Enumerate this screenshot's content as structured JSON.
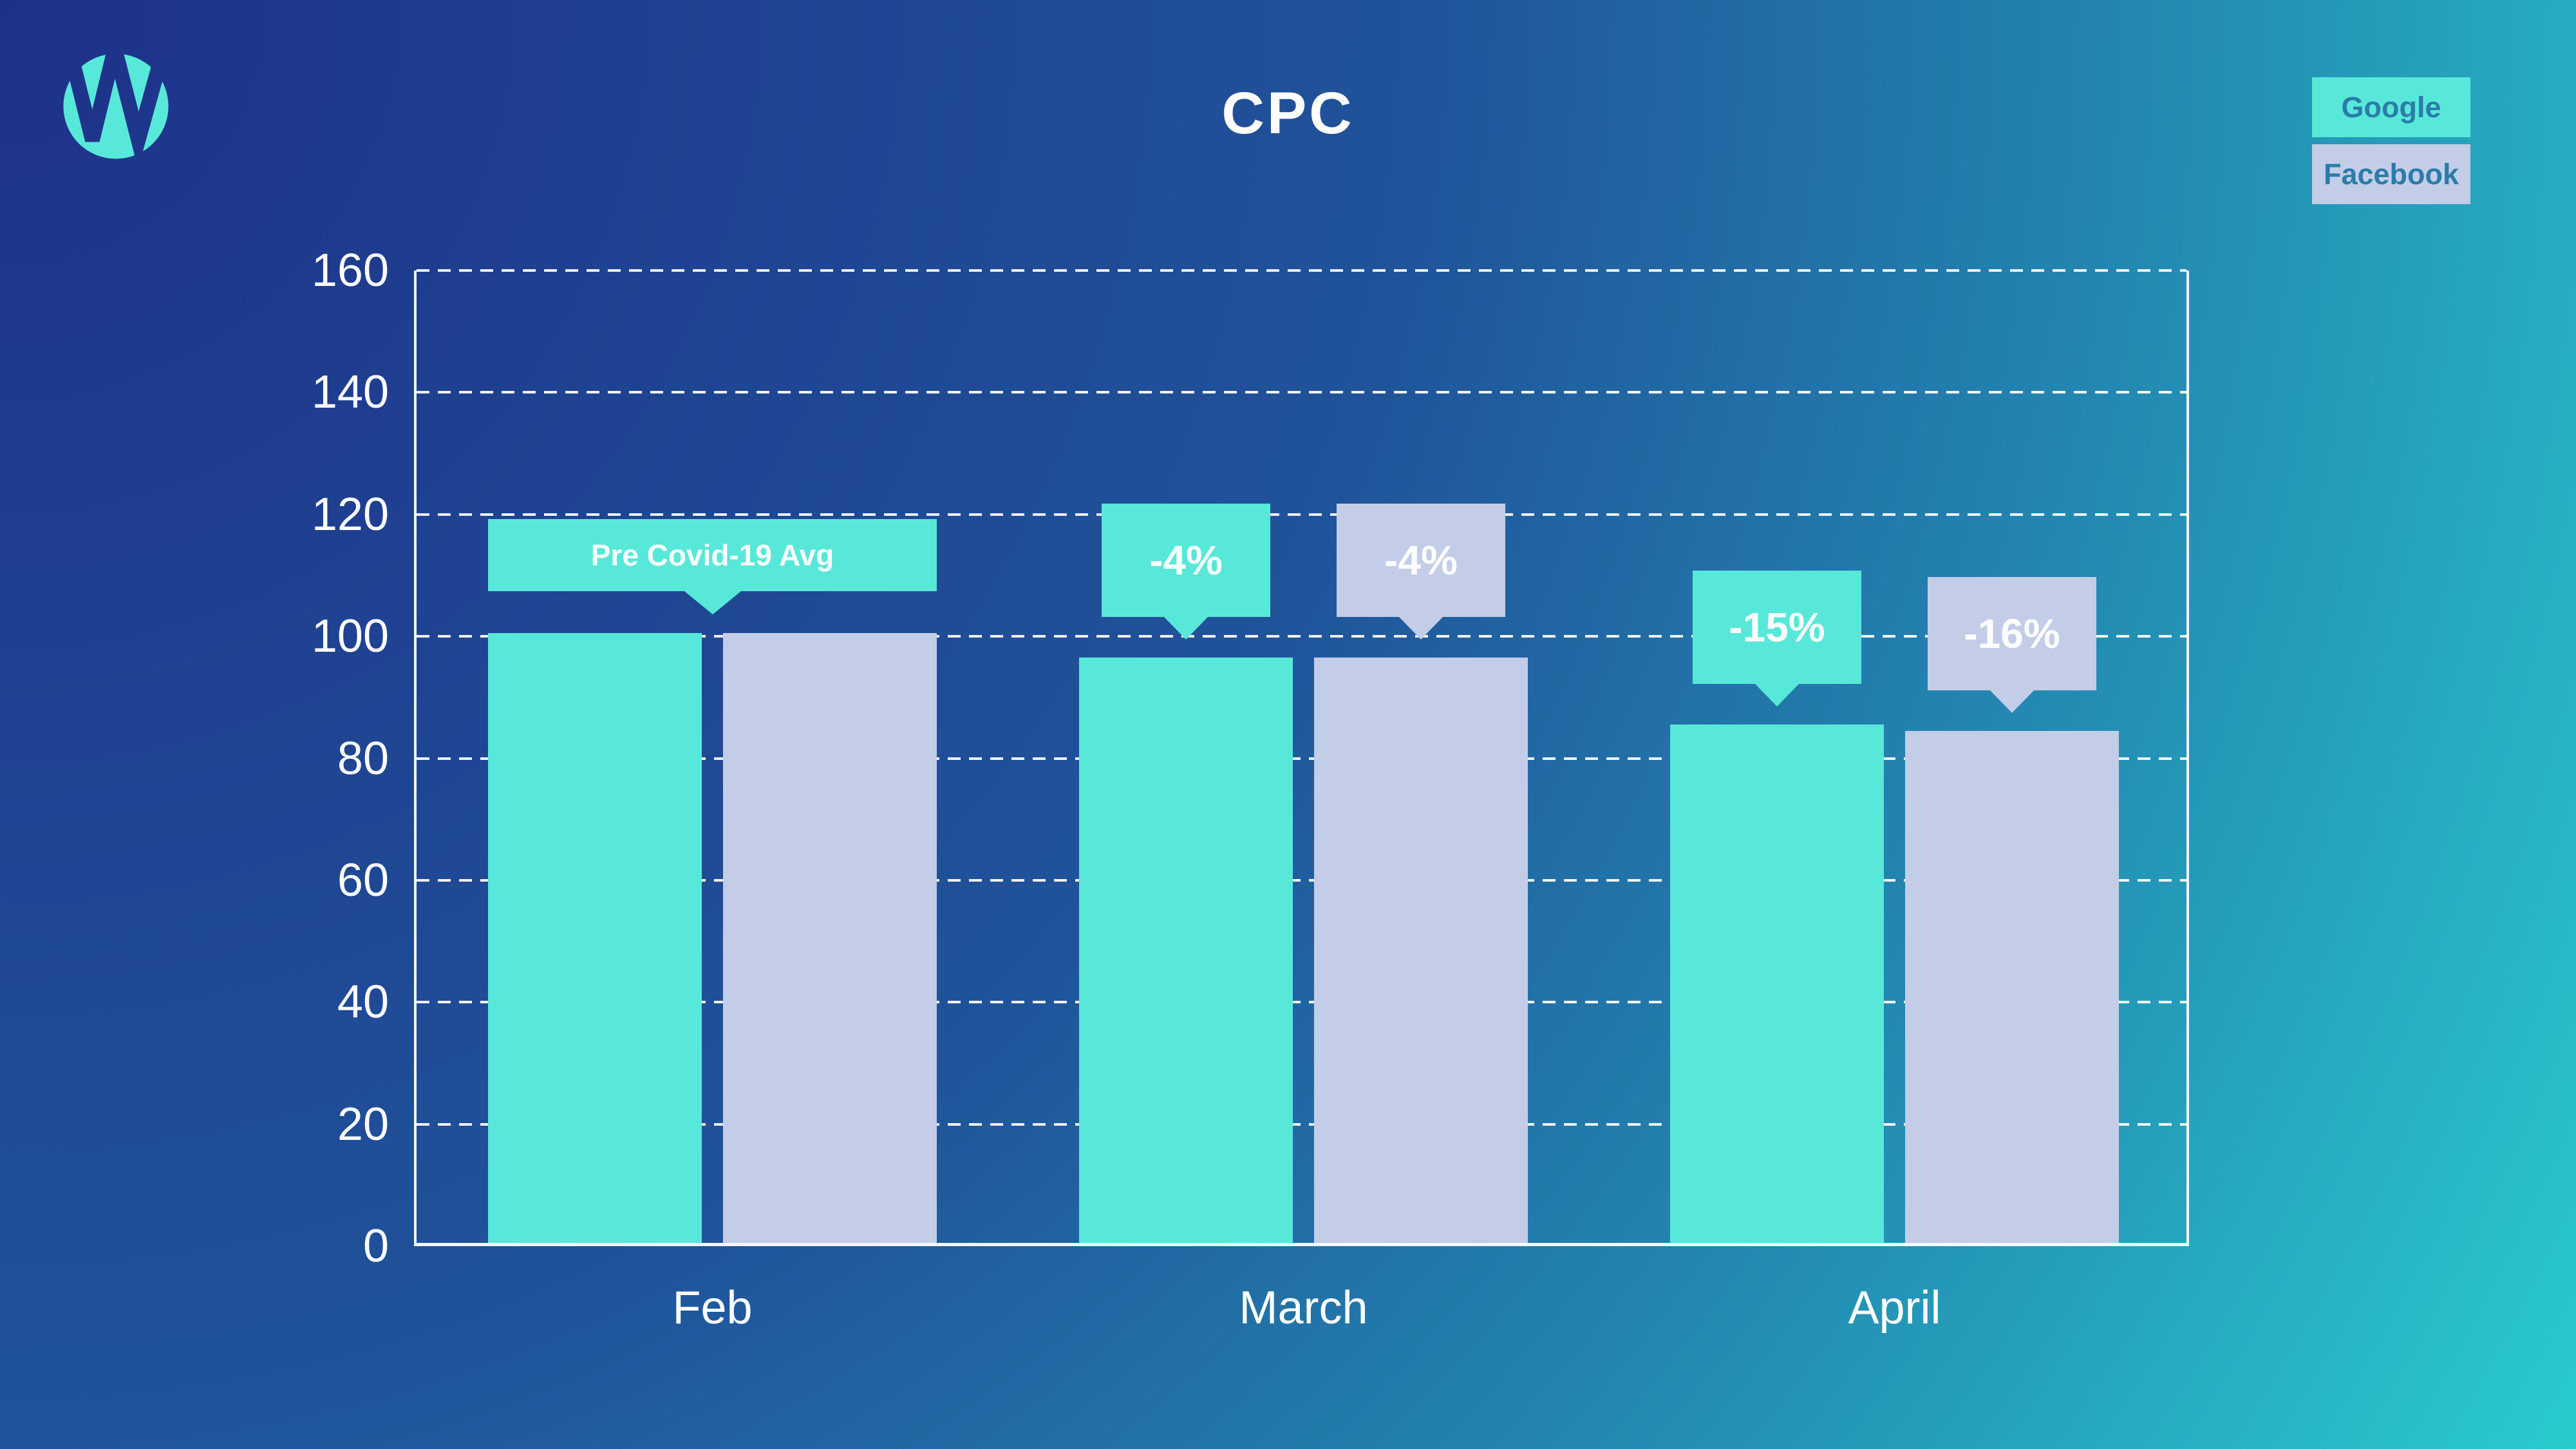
{
  "page": {
    "title": "CPC"
  },
  "logo": {
    "name": "W circle mark",
    "color": "#57e8d9"
  },
  "legend": {
    "text_color": "#2b7ca9",
    "items": [
      {
        "label": "Google",
        "color": "#57e8d9"
      },
      {
        "label": "Facebook",
        "color": "#c3cde8"
      }
    ]
  },
  "background": {
    "from": "#1e3189",
    "mid1": "#20539a",
    "mid2": "#2387b1",
    "to": "#29cbcd"
  },
  "chart_data": {
    "type": "bar",
    "title": "CPC",
    "categories": [
      "Feb",
      "March",
      "April"
    ],
    "series": [
      {
        "name": "Google",
        "color": "#57e8d9",
        "values": [
          100,
          96,
          85
        ]
      },
      {
        "name": "Facebook",
        "color": "#c3cde8",
        "values": [
          100,
          96,
          84
        ]
      }
    ],
    "ylim": [
      0,
      160
    ],
    "yticks": [
      0,
      20,
      40,
      60,
      80,
      100,
      120,
      140,
      160
    ],
    "grid": "horizontal-dashed-white",
    "legend_position": "top-right",
    "axis_color": "#ffffff",
    "tick_text_color": "#ffffff",
    "annotation_text_color": "#ffffff",
    "annotations": [
      {
        "text": "Pre Covid-19 Avg",
        "category": "Feb",
        "series": "pair",
        "style": "wide"
      },
      {
        "text": "-4%",
        "category": "March",
        "series": "Google",
        "style": "percent"
      },
      {
        "text": "-4%",
        "category": "March",
        "series": "Facebook",
        "style": "percent"
      },
      {
        "text": "-15%",
        "category": "April",
        "series": "Google",
        "style": "percent"
      },
      {
        "text": "-16%",
        "category": "April",
        "series": "Facebook",
        "style": "percent"
      }
    ]
  }
}
